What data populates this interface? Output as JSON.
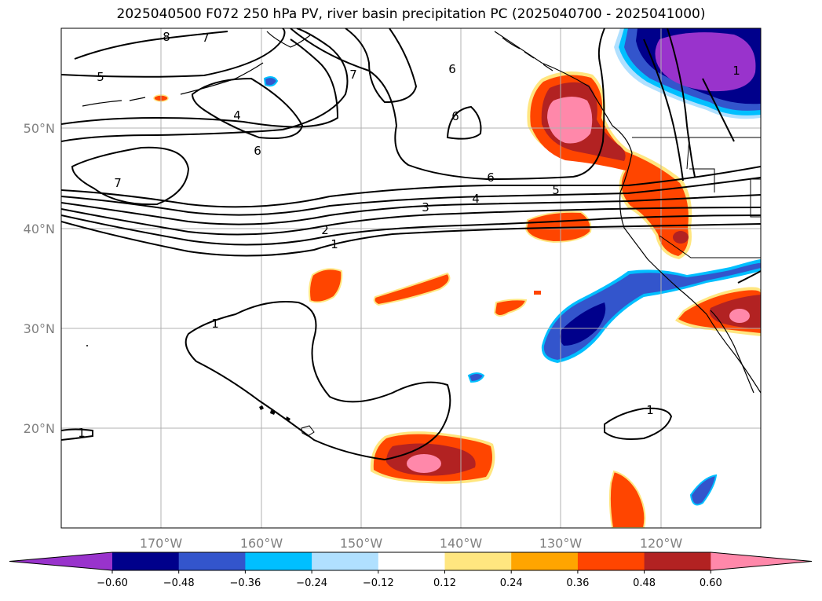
{
  "title": "2025040500 F072 250 hPa PV, river basin precipitation PC (2025040700 - 2025041000)",
  "map": {
    "lat_labels": [
      "50°N",
      "40°N",
      "30°N",
      "20°N"
    ],
    "lon_labels": [
      "170°W",
      "160°W",
      "150°W",
      "140°W",
      "130°W",
      "120°W"
    ],
    "contour_labels": [
      "8",
      "7",
      "5",
      "4",
      "6",
      "7",
      "6",
      "6",
      "7",
      "6",
      "5",
      "4",
      "3",
      "2",
      "1",
      "1",
      "1",
      "1"
    ]
  },
  "colorbar": {
    "ticks": [
      "−0.60",
      "−0.48",
      "−0.36",
      "−0.24",
      "−0.12",
      "0.12",
      "0.24",
      "0.36",
      "0.48",
      "0.60"
    ],
    "colors": [
      "#9933cc",
      "#00008b",
      "#3355cc",
      "#00bfff",
      "#b0e0ff",
      "#ffffff",
      "#ffe680",
      "#ffa500",
      "#ff4500",
      "#b22222",
      "#ff88aa"
    ]
  }
}
